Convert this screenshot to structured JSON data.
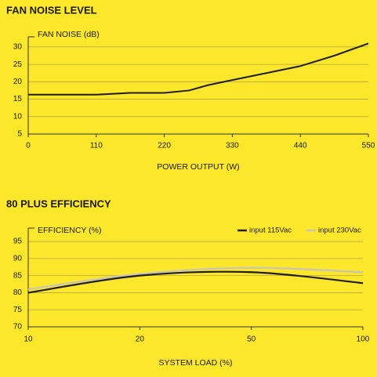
{
  "chart_data": [
    {
      "type": "line",
      "title": "FAN NOISE LEVEL",
      "y_label": "FAN NOISE (dB)",
      "x_label": "POWER OUTPUT (W)",
      "x": [
        0,
        110,
        165,
        220,
        260,
        290,
        330,
        385,
        440,
        495,
        550
      ],
      "values": [
        16.3,
        16.3,
        16.8,
        16.8,
        17.5,
        19,
        20.5,
        22.5,
        24.5,
        27.5,
        31
      ],
      "color": "#1e1e1e",
      "xlim": [
        0,
        550
      ],
      "xticks": [
        0,
        110,
        220,
        330,
        440,
        550
      ],
      "ylim": [
        5,
        32
      ],
      "yticks": [
        5,
        10,
        15,
        20,
        25,
        30
      ],
      "grid": true
    },
    {
      "type": "curve",
      "title": "80 PLUS EFFICIENCY",
      "y_label": "EFFICIENCY (%)",
      "x_label": "SYSTEM LOAD (%)",
      "categories": [
        "10",
        "20",
        "50",
        "100"
      ],
      "series": [
        {
          "name": "input 115Vac",
          "color": "#1e1e1e",
          "values": [
            80,
            85,
            86,
            82.8
          ]
        },
        {
          "name": "input 230Vac",
          "color": "#c9c6b8",
          "values": [
            81,
            85.5,
            87.3,
            86
          ]
        }
      ],
      "ylim": [
        70,
        98
      ],
      "yticks": [
        70,
        75,
        80,
        85,
        90,
        95
      ],
      "grid": true,
      "legend": "top-right"
    }
  ]
}
